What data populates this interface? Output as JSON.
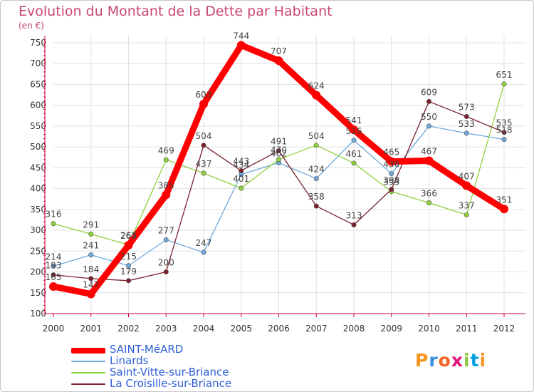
{
  "title": "Evolution du Montant de la Dette par Habitant",
  "unit": "(en €)",
  "logo_text": "Proxiti",
  "colors": {
    "title": "#c8476e",
    "axis": "#cc0033",
    "grid": "#e0e0e0",
    "legend_text": "#2f5fd6",
    "logo": [
      "#f7941d",
      "#3a8dde",
      "#f26522",
      "#e2127a",
      "#8dc63f",
      "#00a0e3",
      "#f7941d"
    ]
  },
  "chart_data": {
    "type": "line",
    "title": "Evolution du Montant de la Dette par Habitant",
    "ylabel": "(en €)",
    "xlabel": "",
    "x": [
      "2000",
      "2001",
      "2002",
      "2003",
      "2004",
      "2005",
      "2006",
      "2007",
      "2008",
      "2009",
      "2010",
      "2011",
      "2012"
    ],
    "ylim": [
      100,
      750
    ],
    "yticks": [
      100,
      150,
      200,
      250,
      300,
      350,
      400,
      450,
      500,
      550,
      600,
      650,
      700,
      750
    ],
    "grid": true,
    "legend_position": "bottom-left",
    "series": [
      {
        "name": "SAINT-MéARD",
        "color": "#ff0000",
        "values": [
          165,
          147,
          264,
          385,
          603,
          744,
          707,
          624,
          541,
          465,
          467,
          407,
          351
        ],
        "labels": [
          "165",
          "147",
          "264",
          "385",
          "603",
          "744",
          "707",
          "624",
          "541",
          "465",
          "467",
          "407",
          "351"
        ]
      },
      {
        "name": "Linards",
        "color": "#6fa8dc",
        "values": [
          214,
          241,
          215,
          277,
          247,
          434,
          462,
          424,
          516,
          436,
          550,
          533,
          518
        ],
        "labels": [
          "214",
          "241",
          "215",
          "277",
          "247",
          "434",
          "462",
          "424",
          "516",
          "436",
          "550",
          "533",
          "518"
        ]
      },
      {
        "name": "Saint-Vitte-sur-Briance",
        "color": "#8ed13a",
        "values": [
          316,
          291,
          265,
          469,
          437,
          401,
          470,
          504,
          461,
          393,
          366,
          337,
          651
        ],
        "labels": [
          "316",
          "291",
          "265",
          "469",
          "437",
          "401",
          "470",
          "504",
          "461",
          "393",
          "366",
          "337",
          "651"
        ]
      },
      {
        "name": "La Croisille-sur-Briance",
        "color": "#7a1f2b",
        "values": [
          193,
          184,
          179,
          200,
          504,
          443,
          491,
          358,
          313,
          398,
          609,
          573,
          535
        ],
        "labels": [
          "193",
          "184",
          "179",
          "200",
          "504",
          "443",
          "491",
          "358",
          "313",
          "398",
          "609",
          "573",
          "535"
        ]
      }
    ]
  }
}
